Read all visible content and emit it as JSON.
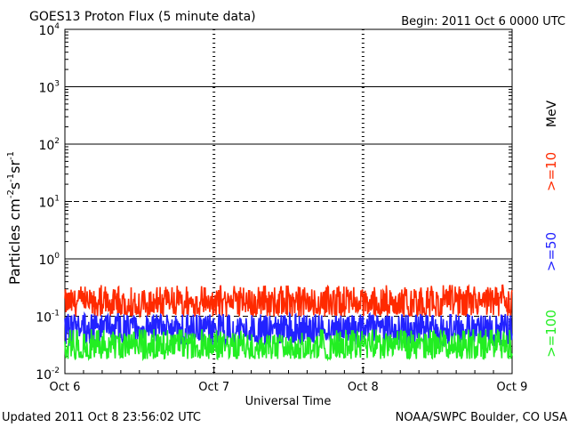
{
  "chart_data": {
    "type": "line",
    "title": "GOES13 Proton Flux (5 minute data)",
    "begin_label": "Begin: 2011 Oct 6 0000 UTC",
    "xlabel": "Universal Time",
    "ylabel": "Particles cm",
    "ylabel_sup1": "-2",
    "ylabel_mid1": "s",
    "ylabel_sup2": "-1",
    "ylabel_mid2": "sr",
    "ylabel_sup3": "-1",
    "x_tick_labels": [
      "Oct 6",
      "Oct 7",
      "Oct 8",
      "Oct 9"
    ],
    "y_scale": "log",
    "ylim": [
      0.01,
      10000
    ],
    "y_tick_labels": [
      {
        "base": "10",
        "exp": "4"
      },
      {
        "base": "10",
        "exp": "3"
      },
      {
        "base": "10",
        "exp": "2"
      },
      {
        "base": "10",
        "exp": "1"
      },
      {
        "base": "10",
        "exp": "0"
      },
      {
        "base": "10",
        "exp": "-1"
      },
      {
        "base": "10",
        "exp": "-2"
      }
    ],
    "series": [
      {
        "name": ">=10",
        "color": "#ff2a00",
        "typical": 0.17,
        "range": [
          0.1,
          0.35
        ]
      },
      {
        "name": ">=50",
        "color": "#2222ff",
        "typical": 0.06,
        "range": [
          0.03,
          0.11
        ]
      },
      {
        "name": ">=100",
        "color": "#22ee22",
        "typical": 0.03,
        "range": [
          0.018,
          0.06
        ]
      }
    ],
    "unit_label": "MeV",
    "grid": true
  },
  "footer": {
    "updated": "Updated 2011 Oct  8 23:56:02 UTC",
    "source": "NOAA/SWPC Boulder, CO USA"
  }
}
